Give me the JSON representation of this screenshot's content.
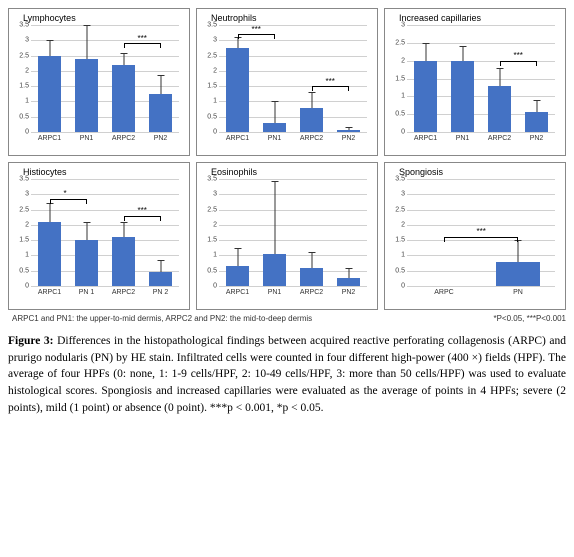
{
  "figure": {
    "panels": [
      {
        "title": "Lymphocytes",
        "ymax": 3.5,
        "ytick_step": 0.5,
        "bars": [
          {
            "label": "ARPC1",
            "value": 2.5,
            "err": 0.5,
            "color": "#4472c4"
          },
          {
            "label": "PN1",
            "value": 2.4,
            "err": 1.1,
            "color": "#4472c4"
          },
          {
            "label": "ARPC2",
            "value": 2.2,
            "err": 0.4,
            "color": "#4472c4"
          },
          {
            "label": "PN2",
            "value": 1.25,
            "err": 0.6,
            "color": "#4472c4"
          }
        ],
        "sigs": [
          {
            "from": 2,
            "to": 3,
            "label": "***",
            "y": 2.9
          }
        ]
      },
      {
        "title": "Neutrophils",
        "ymax": 3.5,
        "ytick_step": 0.5,
        "bars": [
          {
            "label": "ARPC1",
            "value": 2.75,
            "err": 0.35,
            "color": "#4472c4"
          },
          {
            "label": "PN1",
            "value": 0.3,
            "err": 0.7,
            "color": "#4472c4"
          },
          {
            "label": "ARPC2",
            "value": 0.8,
            "err": 0.5,
            "color": "#4472c4"
          },
          {
            "label": "PN2",
            "value": 0.07,
            "err": 0.1,
            "color": "#4472c4"
          }
        ],
        "sigs": [
          {
            "from": 0,
            "to": 1,
            "label": "***",
            "y": 3.2
          },
          {
            "from": 2,
            "to": 3,
            "label": "***",
            "y": 1.5
          }
        ]
      },
      {
        "title": "Increased capillaries",
        "ymax": 3.0,
        "ytick_step": 0.5,
        "bars": [
          {
            "label": "ARPC1",
            "value": 2.0,
            "err": 0.5,
            "color": "#4472c4"
          },
          {
            "label": "PN1",
            "value": 2.0,
            "err": 0.4,
            "color": "#4472c4"
          },
          {
            "label": "ARPC2",
            "value": 1.3,
            "err": 0.5,
            "color": "#4472c4"
          },
          {
            "label": "PN2",
            "value": 0.55,
            "err": 0.35,
            "color": "#4472c4"
          }
        ],
        "sigs": [
          {
            "from": 2,
            "to": 3,
            "label": "***",
            "y": 2.0
          }
        ]
      },
      {
        "title": "Histiocytes",
        "ymax": 3.5,
        "ytick_step": 0.5,
        "bars": [
          {
            "label": "ARPC1",
            "value": 2.1,
            "err": 0.6,
            "color": "#4472c4"
          },
          {
            "label": "PN 1",
            "value": 1.5,
            "err": 0.6,
            "color": "#4472c4"
          },
          {
            "label": "ARPC2",
            "value": 1.6,
            "err": 0.5,
            "color": "#4472c4"
          },
          {
            "label": "PN 2",
            "value": 0.45,
            "err": 0.4,
            "color": "#4472c4"
          }
        ],
        "sigs": [
          {
            "from": 0,
            "to": 1,
            "label": "*",
            "y": 2.85
          },
          {
            "from": 2,
            "to": 3,
            "label": "***",
            "y": 2.3
          }
        ]
      },
      {
        "title": "Eosinophils",
        "ymax": 3.5,
        "ytick_step": 0.5,
        "bars": [
          {
            "label": "ARPC1",
            "value": 0.65,
            "err": 0.6,
            "color": "#4472c4"
          },
          {
            "label": "PN1",
            "value": 1.05,
            "err": 2.4,
            "color": "#4472c4"
          },
          {
            "label": "ARPC2",
            "value": 0.6,
            "err": 0.5,
            "color": "#4472c4"
          },
          {
            "label": "PN2",
            "value": 0.25,
            "err": 0.35,
            "color": "#4472c4"
          }
        ],
        "sigs": []
      },
      {
        "title": "Spongiosis",
        "ymax": 3.5,
        "ytick_step": 0.5,
        "bars": [
          {
            "label": "ARPC",
            "value": 0.0,
            "err": 0.0,
            "color": "#4472c4"
          },
          {
            "label": "PN",
            "value": 0.8,
            "err": 0.7,
            "color": "#4472c4"
          }
        ],
        "sigs": [
          {
            "from": 0,
            "to": 1,
            "label": "***",
            "y": 1.6
          }
        ]
      }
    ],
    "styling": {
      "bar_color": "#4472c4",
      "grid_color": "#d0d0d0",
      "axis_color": "#666666",
      "panel_border": "#888888",
      "title_fontsize": 9,
      "tick_fontsize": 7,
      "background": "#ffffff"
    },
    "footnote_left": "ARPC1 and PN1: the upper-to-mid dermis, ARPC2 and PN2: the mid-to-deep dermis",
    "footnote_right": "*P<0.05, ***P<0.001",
    "caption_lead": "Figure 3: ",
    "caption_body": "Differences in the histopathological findings between acquired reactive perforating collagenosis (ARPC) and prurigo nodularis (PN) by HE stain. Infiltrated cells were counted in four different high-power (400 ×) fields (HPF). The average of four HPFs (0: none, 1: 1-9 cells/HPF, 2: 10-49 cells/HPF, 3: more than 50 cells/HPF) was used to evaluate histological scores. Spongiosis and increased capillaries were evaluated as the average of points in 4 HPFs; severe (2 points), mild (1 point) or absence (0 point). ***p < 0.001, *p < 0.05."
  }
}
